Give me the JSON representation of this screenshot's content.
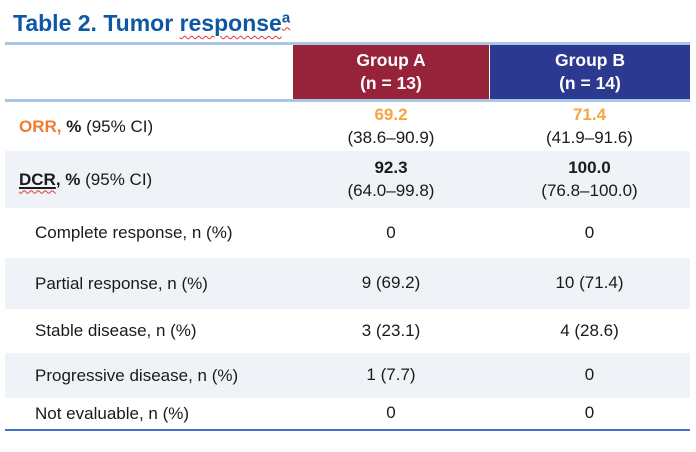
{
  "title": {
    "part1": "Table 2. Tumor ",
    "part2": "response",
    "superscript": "a"
  },
  "header": {
    "group_a": {
      "name": "Group A",
      "n": "(n = 13)"
    },
    "group_b": {
      "name": "Group B",
      "n": "(n = 14)"
    }
  },
  "rows": {
    "orr": {
      "abbr": "ORR,",
      "unit": " %",
      "suffix": " (95% CI)",
      "group_a": {
        "value": "69.2",
        "ci": "(38.6–90.9)"
      },
      "group_b": {
        "value": "71.4",
        "ci": "(41.9–91.6)"
      }
    },
    "dcr": {
      "abbr": "DCR",
      "unit": ", %",
      "suffix": " (95% CI)",
      "group_a": {
        "value": "92.3",
        "ci": "(64.0–99.8)"
      },
      "group_b": {
        "value": "100.0",
        "ci": "(76.8–100.0)"
      }
    },
    "complete_response": {
      "label": "Complete response, n (%)",
      "group_a": "0",
      "group_b": "0"
    },
    "partial_response": {
      "label": "Partial response, n (%)",
      "group_a": "9 (69.2)",
      "group_b": "10 (71.4)"
    },
    "stable_disease": {
      "label": "Stable disease, n (%)",
      "group_a": "3 (23.1)",
      "group_b": "4 (28.6)"
    },
    "progressive_disease": {
      "label": "Progressive disease, n (%)",
      "group_a": "1 (7.7)",
      "group_b": "0"
    },
    "not_evaluable": {
      "label": "Not evaluable, n (%)",
      "group_a": "0",
      "group_b": "0"
    }
  },
  "colors": {
    "title_blue": "#0E57A5",
    "group_a_maroon": "#962339",
    "group_b_blue": "#2B3990",
    "orr_label_orange": "#EE7D31",
    "orr_value_orange": "#F6A540",
    "shaded_row": "#EFF3F8",
    "light_rule": "#A8C7E4",
    "bottom_rule": "#4472C4",
    "spellcheck_red": "#E0382D"
  }
}
